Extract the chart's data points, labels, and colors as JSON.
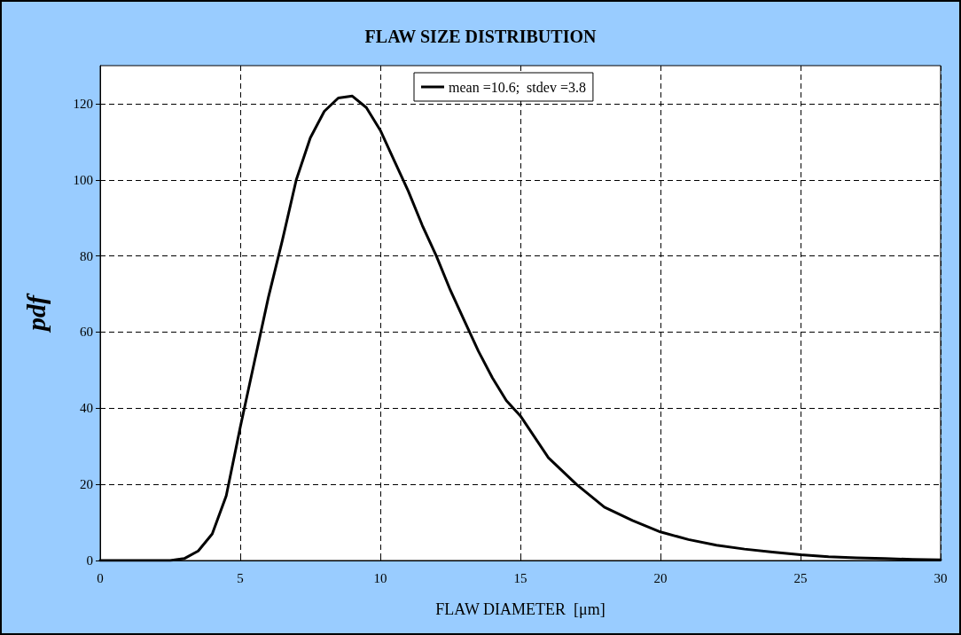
{
  "chart_data": {
    "type": "line",
    "title": "FLAW SIZE DISTRIBUTION",
    "xlabel": "FLAW DIAMETER  [μm]",
    "ylabel": "pdf",
    "x": [
      0,
      1,
      2,
      2.5,
      3,
      3.5,
      4,
      4.5,
      5,
      5.5,
      6,
      6.5,
      7,
      7.5,
      8,
      8.5,
      9,
      9.5,
      10,
      10.5,
      11,
      11.5,
      12,
      12.5,
      13,
      13.5,
      14,
      14.5,
      15,
      16,
      17,
      18,
      19,
      20,
      21,
      22,
      23,
      24,
      25,
      26,
      27,
      28,
      29,
      30
    ],
    "series": [
      {
        "name": "mean =10.6;  stdev =3.8",
        "color": "#000000",
        "values": [
          0,
          0,
          0,
          0,
          0.5,
          2.5,
          7,
          17,
          35,
          52,
          69,
          84,
          100,
          111,
          118,
          121.5,
          122,
          119,
          113,
          105,
          97,
          88,
          80,
          71,
          63,
          55,
          48,
          42,
          38,
          27,
          20,
          14,
          10.5,
          7.5,
          5.5,
          4,
          3,
          2.2,
          1.5,
          1,
          0.7,
          0.5,
          0.3,
          0.2
        ]
      }
    ],
    "xlim": [
      0,
      30
    ],
    "xticks": [
      0,
      5,
      10,
      15,
      20,
      25,
      30
    ],
    "ylim": [
      0,
      130
    ],
    "yticks": [
      0,
      20,
      40,
      60,
      80,
      100,
      120
    ],
    "grid": true,
    "legend": "top",
    "line_style": "solid"
  }
}
